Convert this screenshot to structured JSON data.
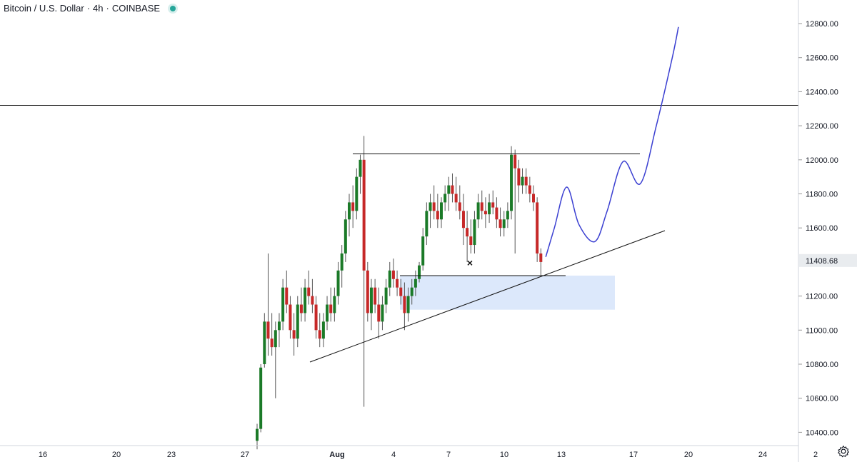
{
  "header": {
    "symbol": "Bitcoin / U.S. Dollar",
    "interval": "4h",
    "exchange": "COINBASE",
    "status_color": "#26a69a"
  },
  "icons": {
    "status": "status-dot",
    "settings": "gear-icon"
  },
  "colors": {
    "up": "#1b7a28",
    "down": "#c62828",
    "wick": "#555555",
    "path": "#3a3fd1",
    "zone": "#dce8fb",
    "lines": "#111111",
    "price_tag_bg": "#e9ecef"
  },
  "chart_data": {
    "type": "candlestick",
    "title": "",
    "y_ticks": [
      "12800.00",
      "12600.00",
      "12400.00",
      "12200.00",
      "12000.00",
      "11800.00",
      "11600.00",
      "11200.00",
      "11000.00",
      "10800.00",
      "10600.00",
      "10400.00"
    ],
    "x_ticks": [
      "16",
      "20",
      "23",
      "27",
      "Aug",
      "4",
      "7",
      "10",
      "13",
      "17",
      "20",
      "24",
      "2"
    ],
    "ylim": [
      10320,
      12920
    ],
    "current_price_label": "11408.68",
    "candles": [
      [
        0,
        10350,
        10450,
        10300,
        10420
      ],
      [
        0.3,
        10420,
        10800,
        10400,
        10780
      ],
      [
        0.6,
        10800,
        11100,
        10780,
        11050
      ],
      [
        0.9,
        11050,
        11450,
        10850,
        10950
      ],
      [
        1.2,
        10950,
        11100,
        10850,
        10900
      ],
      [
        1.5,
        10900,
        11050,
        10600,
        11000
      ],
      [
        1.8,
        11000,
        11100,
        10900,
        11050
      ],
      [
        2.1,
        11050,
        11300,
        11000,
        11250
      ],
      [
        2.4,
        11250,
        11350,
        11100,
        11150
      ],
      [
        2.7,
        11150,
        11200,
        10950,
        11000
      ],
      [
        3.0,
        11000,
        11100,
        10850,
        10950
      ],
      [
        3.3,
        10950,
        11200,
        10900,
        11150
      ],
      [
        3.6,
        11150,
        11250,
        11050,
        11100
      ],
      [
        3.9,
        11100,
        11300,
        11050,
        11250
      ],
      [
        4.2,
        11250,
        11350,
        11150,
        11200
      ],
      [
        4.5,
        11200,
        11300,
        11100,
        11150
      ],
      [
        4.8,
        11150,
        11200,
        10950,
        11000
      ],
      [
        5.1,
        11000,
        11100,
        10900,
        10950
      ],
      [
        5.4,
        10950,
        11100,
        10900,
        11050
      ],
      [
        5.7,
        11050,
        11200,
        11000,
        11150
      ],
      [
        6.0,
        11150,
        11250,
        11050,
        11100
      ],
      [
        6.3,
        11100,
        11250,
        11050,
        11200
      ],
      [
        6.6,
        11200,
        11400,
        11150,
        11350
      ],
      [
        6.9,
        11350,
        11500,
        11250,
        11450
      ],
      [
        7.2,
        11450,
        11700,
        11400,
        11650
      ],
      [
        7.5,
        11650,
        11800,
        11550,
        11750
      ],
      [
        7.8,
        11750,
        11850,
        11600,
        11700
      ],
      [
        8.1,
        11700,
        11950,
        11650,
        11900
      ],
      [
        8.4,
        11900,
        12030,
        11800,
        12000
      ],
      [
        8.7,
        12000,
        12140,
        10550,
        11350
      ],
      [
        9.0,
        11350,
        11400,
        11050,
        11100
      ],
      [
        9.3,
        11100,
        11300,
        11000,
        11250
      ],
      [
        9.6,
        11250,
        11300,
        11100,
        11150
      ],
      [
        9.9,
        11150,
        11250,
        10950,
        11050
      ],
      [
        10.2,
        11050,
        11200,
        11000,
        11150
      ],
      [
        10.5,
        11150,
        11300,
        11100,
        11250
      ],
      [
        10.8,
        11250,
        11400,
        11200,
        11350
      ],
      [
        11.1,
        11350,
        11420,
        11250,
        11300
      ],
      [
        11.4,
        11300,
        11350,
        11200,
        11250
      ],
      [
        11.7,
        11250,
        11300,
        11150,
        11200
      ],
      [
        12.0,
        11200,
        11280,
        11000,
        11100
      ],
      [
        12.3,
        11100,
        11250,
        11050,
        11200
      ],
      [
        12.6,
        11200,
        11300,
        11150,
        11250
      ],
      [
        12.9,
        11250,
        11350,
        11200,
        11300
      ],
      [
        13.2,
        11300,
        11400,
        11280,
        11380
      ],
      [
        13.5,
        11380,
        11600,
        11350,
        11550
      ],
      [
        13.8,
        11550,
        11750,
        11500,
        11700
      ],
      [
        14.1,
        11700,
        11800,
        11600,
        11750
      ],
      [
        14.4,
        11750,
        11850,
        11650,
        11700
      ],
      [
        14.7,
        11700,
        11800,
        11600,
        11650
      ],
      [
        15.0,
        11650,
        11780,
        11600,
        11750
      ],
      [
        15.3,
        11750,
        11850,
        11700,
        11800
      ],
      [
        15.6,
        11800,
        11900,
        11700,
        11850
      ],
      [
        15.9,
        11850,
        11920,
        11750,
        11800
      ],
      [
        16.2,
        11800,
        11900,
        11700,
        11750
      ],
      [
        16.5,
        11750,
        11850,
        11650,
        11700
      ],
      [
        16.8,
        11700,
        11800,
        11500,
        11600
      ],
      [
        17.1,
        11600,
        11700,
        11400,
        11550
      ],
      [
        17.4,
        11550,
        11650,
        11450,
        11500
      ],
      [
        17.7,
        11500,
        11700,
        11450,
        11650
      ],
      [
        18.0,
        11650,
        11800,
        11600,
        11750
      ],
      [
        18.3,
        11750,
        11820,
        11650,
        11700
      ],
      [
        18.6,
        11700,
        11780,
        11600,
        11680
      ],
      [
        18.9,
        11680,
        11800,
        11630,
        11750
      ],
      [
        19.2,
        11750,
        11820,
        11680,
        11720
      ],
      [
        19.5,
        11720,
        11780,
        11600,
        11650
      ],
      [
        19.8,
        11650,
        11720,
        11550,
        11600
      ],
      [
        20.1,
        11600,
        11700,
        11550,
        11650
      ],
      [
        20.4,
        11650,
        11750,
        11600,
        11700
      ],
      [
        20.7,
        11700,
        12080,
        11650,
        12030
      ],
      [
        21.0,
        12030,
        12060,
        11450,
        11950
      ],
      [
        21.3,
        11950,
        12000,
        11750,
        11850
      ],
      [
        21.6,
        11850,
        11950,
        11800,
        11900
      ],
      [
        21.9,
        11900,
        11950,
        11800,
        11850
      ],
      [
        22.2,
        11850,
        11900,
        11750,
        11800
      ],
      [
        22.5,
        11800,
        11850,
        11700,
        11750
      ],
      [
        22.8,
        11750,
        11780,
        11400,
        11450
      ],
      [
        23.1,
        11450,
        11480,
        11320,
        11400
      ]
    ],
    "annotations": {
      "resistance_level": 12035,
      "support_level": 11320,
      "horizontal_level": 12320,
      "demand_zone": [
        11120,
        11320
      ],
      "marker": "×",
      "projected_path": [
        [
          23.5,
          11430
        ],
        [
          24.2,
          11600
        ],
        [
          25.2,
          11840
        ],
        [
          26.2,
          11620
        ],
        [
          27.5,
          11520
        ],
        [
          28.5,
          11700
        ],
        [
          29.8,
          11990
        ],
        [
          31.2,
          11860
        ],
        [
          32.5,
          12200
        ],
        [
          33.8,
          12600
        ],
        [
          34.3,
          12780
        ]
      ]
    }
  }
}
